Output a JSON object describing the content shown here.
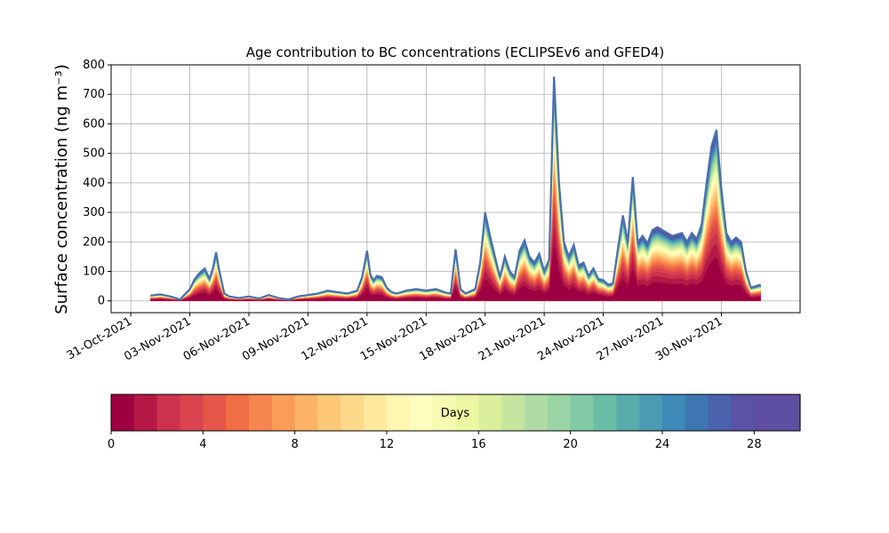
{
  "chart_data": {
    "type": "area",
    "title": "Age contribution to BC concentrations (ECLIPSEv6 and GFED4)",
    "ylabel": "Surface concentration (ng m⁻³)",
    "xlabel": "",
    "xlim": [
      "2021-10-30",
      "2021-12-04"
    ],
    "ylim": [
      -40,
      800
    ],
    "grid": true,
    "x_ticks": [
      "31-Oct-2021",
      "03-Nov-2021",
      "06-Nov-2021",
      "09-Nov-2021",
      "12-Nov-2021",
      "15-Nov-2021",
      "18-Nov-2021",
      "21-Nov-2021",
      "24-Nov-2021",
      "27-Nov-2021",
      "30-Nov-2021"
    ],
    "y_ticks": [
      0,
      100,
      200,
      300,
      400,
      500,
      600,
      700,
      800
    ],
    "total_series": {
      "name": "",
      "color": "#4c6fae",
      "x": [
        "2021-11-01T00",
        "2021-11-01T12",
        "2021-11-02T00",
        "2021-11-02T12",
        "2021-11-03T00",
        "2021-11-03T06",
        "2021-11-03T12",
        "2021-11-03T18",
        "2021-11-04T00",
        "2021-11-04T04",
        "2021-11-04T08",
        "2021-11-04T12",
        "2021-11-04T18",
        "2021-11-05T00",
        "2021-11-05T12",
        "2021-11-06T00",
        "2021-11-06T12",
        "2021-11-07T00",
        "2021-11-07T12",
        "2021-11-08T00",
        "2021-11-08T12",
        "2021-11-09T00",
        "2021-11-09T12",
        "2021-11-10T00",
        "2021-11-10T12",
        "2021-11-11T00",
        "2021-11-11T12",
        "2021-11-11T18",
        "2021-11-12T00",
        "2021-11-12T04",
        "2021-11-12T08",
        "2021-11-12T12",
        "2021-11-12T18",
        "2021-11-13T00",
        "2021-11-13T06",
        "2021-11-13T12",
        "2021-11-13T18",
        "2021-11-14T00",
        "2021-11-14T12",
        "2021-11-15T00",
        "2021-11-15T12",
        "2021-11-16T00",
        "2021-11-16T06",
        "2021-11-16T12",
        "2021-11-16T18",
        "2021-11-17T00",
        "2021-11-17T12",
        "2021-11-17T18",
        "2021-11-18T00",
        "2021-11-18T06",
        "2021-11-18T12",
        "2021-11-18T18",
        "2021-11-19T00",
        "2021-11-19T06",
        "2021-11-19T12",
        "2021-11-19T18",
        "2021-11-20T00",
        "2021-11-20T06",
        "2021-11-20T12",
        "2021-11-20T18",
        "2021-11-21T00",
        "2021-11-21T06",
        "2021-11-21T12",
        "2021-11-21T18",
        "2021-11-22T00",
        "2021-11-22T06",
        "2021-11-22T12",
        "2021-11-22T18",
        "2021-11-23T00",
        "2021-11-23T06",
        "2021-11-23T12",
        "2021-11-23T18",
        "2021-11-24T00",
        "2021-11-24T06",
        "2021-11-24T12",
        "2021-11-24T18",
        "2021-11-25T00",
        "2021-11-25T06",
        "2021-11-25T12",
        "2021-11-25T18",
        "2021-11-26T00",
        "2021-11-26T06",
        "2021-11-26T12",
        "2021-11-26T18",
        "2021-11-27T00",
        "2021-11-27T12",
        "2021-11-28T00",
        "2021-11-28T06",
        "2021-11-28T12",
        "2021-11-28T18",
        "2021-11-29T00",
        "2021-11-29T06",
        "2021-11-29T12",
        "2021-11-29T18",
        "2021-11-30T00",
        "2021-11-30T06",
        "2021-11-30T12",
        "2021-11-30T18",
        "2021-12-01T00",
        "2021-12-01T06",
        "2021-12-01T12",
        "2021-12-01T18",
        "2021-12-02T00"
      ],
      "y": [
        18,
        22,
        15,
        5,
        40,
        75,
        95,
        110,
        75,
        110,
        165,
        100,
        25,
        15,
        10,
        15,
        8,
        20,
        10,
        5,
        15,
        20,
        25,
        35,
        30,
        25,
        35,
        80,
        170,
        90,
        70,
        85,
        80,
        45,
        30,
        25,
        30,
        35,
        40,
        35,
        40,
        28,
        25,
        175,
        40,
        25,
        40,
        130,
        300,
        220,
        150,
        80,
        150,
        100,
        80,
        170,
        205,
        150,
        130,
        160,
        100,
        140,
        760,
        400,
        200,
        150,
        190,
        120,
        130,
        85,
        110,
        75,
        70,
        55,
        60,
        180,
        290,
        200,
        420,
        200,
        220,
        195,
        240,
        250,
        240,
        220,
        230,
        200,
        230,
        210,
        260,
        400,
        525,
        580,
        380,
        230,
        200,
        215,
        200,
        100,
        45,
        50,
        55
      ]
    },
    "colorbar": {
      "label": "Days",
      "ticks": [
        0,
        4,
        8,
        12,
        16,
        20,
        24,
        28
      ],
      "range": [
        0,
        30
      ],
      "colors": [
        "#9e0142",
        "#b51946",
        "#cb334c",
        "#d9444d",
        "#e55749",
        "#f16d43",
        "#f7854e",
        "#fb9d59",
        "#fdb366",
        "#fec877",
        "#fdd98a",
        "#fee99d",
        "#fff6b0",
        "#feffbe",
        "#f6fbb2",
        "#ebf7a3",
        "#d9ef9b",
        "#c4e69f",
        "#afdca4",
        "#98d4a4",
        "#81c9a5",
        "#6bbda7",
        "#58adac",
        "#4a9bb3",
        "#3d8ab9",
        "#3e76b2",
        "#4a63ac",
        "#5a52a4",
        "#5e4fa2",
        "#5e4fa2"
      ]
    }
  }
}
